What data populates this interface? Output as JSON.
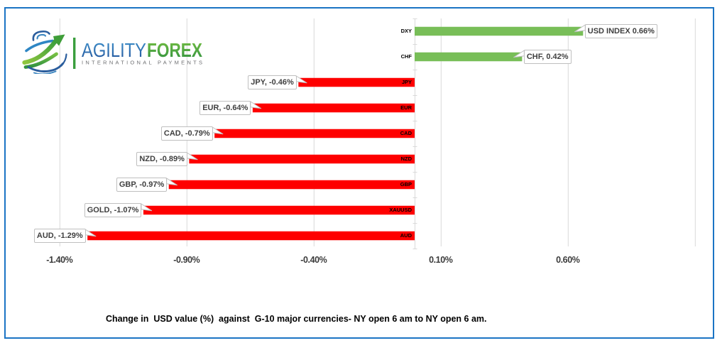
{
  "window": {
    "background": "#ffffff",
    "frame_border_color": "#1b74c4"
  },
  "logo": {
    "brand_primary": "AGILITY",
    "brand_secondary": "FOREX",
    "tagline": "INTERNATIONAL PAYMENTS",
    "brand_primary_color": "#2c6cb4",
    "brand_secondary_color": "#46a13a",
    "tagline_color": "#6e6f72"
  },
  "chart_data": {
    "type": "bar",
    "orientation": "horizontal",
    "caption": "Change in  USD value (%)  against  G-10 major currencies- NY open 6 am to NY open 6 am.",
    "categories": [
      "DXY",
      "CHF",
      "JPY",
      "EUR",
      "CAD",
      "NZD",
      "GBP",
      "XAUUSD",
      "AUD"
    ],
    "values": [
      0.66,
      0.42,
      -0.46,
      -0.64,
      -0.79,
      -0.89,
      -0.97,
      -1.07,
      -1.29
    ],
    "data_labels": [
      "USD INDEX 0.66%",
      "CHF, 0.42%",
      "JPY, -0.46%",
      "EUR, -0.64%",
      "CAD, -0.79%",
      "NZD, -0.89%",
      "GBP, -0.97%",
      "GOLD, -1.07%",
      "AUD, -1.29%"
    ],
    "x_ticks": [
      {
        "label": "-1.40%",
        "value": -1.4
      },
      {
        "label": "-0.90%",
        "value": -0.9
      },
      {
        "label": "-0.40%",
        "value": -0.4
      },
      {
        "label": "0.10%",
        "value": 0.1
      },
      {
        "label": "0.60%",
        "value": 0.6
      }
    ],
    "gridline_values": [
      -1.4,
      -0.9,
      -0.4,
      0.1,
      0.6,
      1.1
    ],
    "xlim": [
      -1.4,
      1.1
    ],
    "grid": true,
    "legend": false,
    "positive_color": "#78be58",
    "negative_color": "#fe0000",
    "gridline_color": "#d9d9d9",
    "axis_line_color": "#d9d9d9",
    "tick_label_color": "#262626",
    "category_label_color": "#000000",
    "label_box_background": "#ffffff",
    "label_box_border_color": "#bfbfbf",
    "label_box_text_color": "#3f3f3f"
  }
}
